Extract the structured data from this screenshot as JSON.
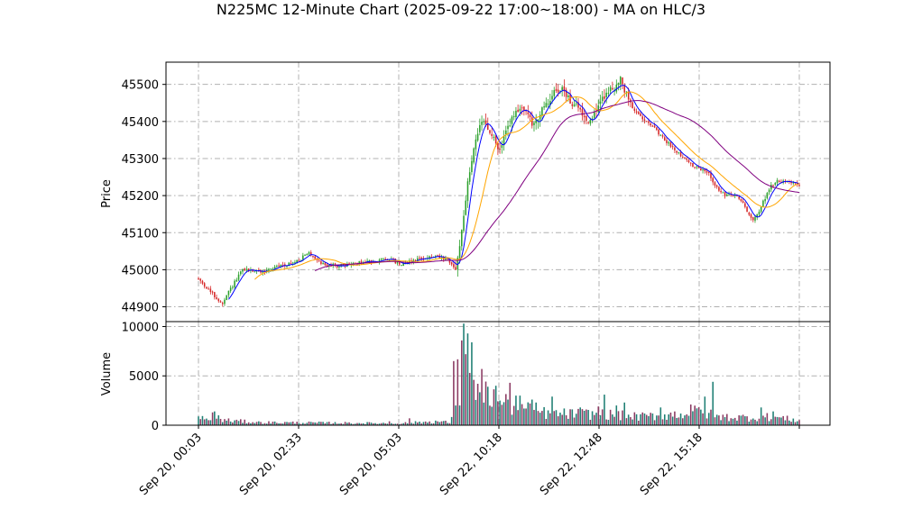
{
  "chart_data": {
    "type": "candlestick",
    "title": "N225MC 12-Minute Chart (2025-09-22 17:00~18:00) - MA on HLC/3",
    "panels": [
      {
        "name": "price",
        "ylabel": "Price",
        "ylim": [
          44860,
          45560
        ],
        "yticks": [
          44900,
          45000,
          45100,
          45200,
          45300,
          45400,
          45500
        ],
        "grid": true
      },
      {
        "name": "volume",
        "ylabel": "Volume",
        "ylim": [
          0,
          10500
        ],
        "yticks": [
          0,
          5000,
          10000
        ],
        "grid": true
      }
    ],
    "xticks": [
      "Sep 20, 00:03",
      "Sep 20, 02:33",
      "Sep 20, 05:03",
      "Sep 22, 10:18",
      "Sep 22, 12:48",
      "Sep 22, 15:18",
      ""
    ],
    "n_bars": 300,
    "price_anchors": [
      [
        0,
        44975
      ],
      [
        12,
        44905
      ],
      [
        15,
        44940
      ],
      [
        22,
        45000
      ],
      [
        32,
        44995
      ],
      [
        40,
        45010
      ],
      [
        48,
        45020
      ],
      [
        55,
        45045
      ],
      [
        62,
        45015
      ],
      [
        70,
        45010
      ],
      [
        82,
        45020
      ],
      [
        95,
        45030
      ],
      [
        100,
        45015
      ],
      [
        110,
        45030
      ],
      [
        118,
        45035
      ],
      [
        124,
        45025
      ],
      [
        128,
        45000
      ],
      [
        130,
        45070
      ],
      [
        134,
        45230
      ],
      [
        138,
        45360
      ],
      [
        142,
        45400
      ],
      [
        146,
        45360
      ],
      [
        150,
        45320
      ],
      [
        154,
        45390
      ],
      [
        158,
        45420
      ],
      [
        162,
        45440
      ],
      [
        166,
        45390
      ],
      [
        170,
        45420
      ],
      [
        174,
        45450
      ],
      [
        178,
        45490
      ],
      [
        182,
        45480
      ],
      [
        186,
        45450
      ],
      [
        190,
        45430
      ],
      [
        194,
        45400
      ],
      [
        198,
        45430
      ],
      [
        202,
        45470
      ],
      [
        206,
        45490
      ],
      [
        210,
        45510
      ],
      [
        214,
        45460
      ],
      [
        218,
        45420
      ],
      [
        224,
        45400
      ],
      [
        230,
        45360
      ],
      [
        238,
        45320
      ],
      [
        246,
        45280
      ],
      [
        254,
        45260
      ],
      [
        258,
        45220
      ],
      [
        262,
        45200
      ],
      [
        268,
        45200
      ],
      [
        272,
        45170
      ],
      [
        276,
        45130
      ],
      [
        280,
        45170
      ],
      [
        284,
        45220
      ],
      [
        288,
        45240
      ],
      [
        294,
        45240
      ],
      [
        299,
        45225
      ]
    ],
    "volume_profile": [
      [
        0,
        700
      ],
      [
        30,
        300
      ],
      [
        100,
        200
      ],
      [
        118,
        400
      ],
      [
        125,
        300
      ],
      [
        128,
        2500
      ],
      [
        130,
        7000
      ],
      [
        136,
        5000
      ],
      [
        142,
        3500
      ],
      [
        150,
        2500
      ],
      [
        160,
        1800
      ],
      [
        175,
        1200
      ],
      [
        200,
        1200
      ],
      [
        220,
        900
      ],
      [
        240,
        1200
      ],
      [
        250,
        1500
      ],
      [
        258,
        900
      ],
      [
        275,
        800
      ],
      [
        285,
        900
      ],
      [
        299,
        500
      ]
    ],
    "volume_spikes": [
      [
        0,
        900
      ],
      [
        7,
        1300
      ],
      [
        8,
        1400
      ],
      [
        10,
        1000
      ],
      [
        95,
        400
      ],
      [
        105,
        700
      ],
      [
        127,
        6500
      ],
      [
        128,
        2000
      ],
      [
        130,
        2000
      ],
      [
        132,
        10300
      ],
      [
        133,
        7200
      ],
      [
        134,
        9300
      ],
      [
        135,
        5300
      ],
      [
        136,
        8400
      ],
      [
        137,
        4600
      ],
      [
        139,
        4200
      ],
      [
        141,
        5700
      ],
      [
        144,
        3900
      ],
      [
        148,
        4000
      ],
      [
        150,
        2500
      ],
      [
        155,
        4300
      ],
      [
        158,
        3000
      ],
      [
        160,
        3000
      ],
      [
        166,
        2600
      ],
      [
        168,
        2300
      ],
      [
        176,
        2900
      ],
      [
        190,
        1800
      ],
      [
        199,
        1900
      ],
      [
        202,
        3100
      ],
      [
        208,
        2000
      ],
      [
        212,
        2300
      ],
      [
        230,
        1800
      ],
      [
        245,
        2100
      ],
      [
        252,
        2900
      ],
      [
        256,
        4400
      ],
      [
        280,
        1800
      ],
      [
        286,
        1400
      ]
    ],
    "moving_averages": [
      {
        "window": 5,
        "color": "#0000ff",
        "start": 15
      },
      {
        "window": 16,
        "color": "#ffa500",
        "start": 28
      },
      {
        "window": 48,
        "color": "#800080",
        "start": 58
      }
    ],
    "colors": {
      "up": "#2ca02c",
      "down": "#d62728",
      "volume_a": "#1f7f74",
      "volume_b": "#8b3a62"
    }
  }
}
